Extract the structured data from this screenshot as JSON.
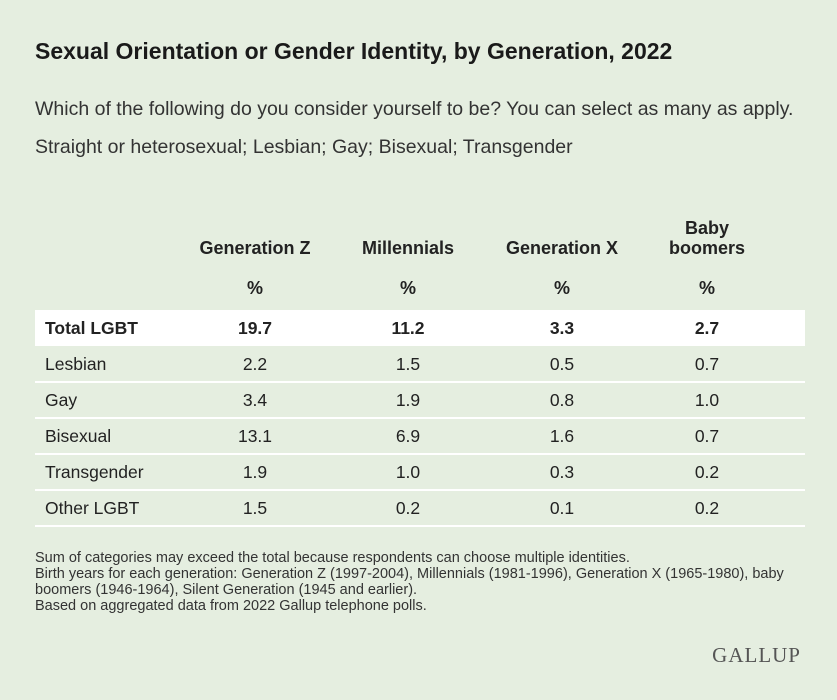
{
  "title": "Sexual Orientation or Gender Identity, by Generation, 2022",
  "subtitle": "Which of the following do you consider yourself to be? You can select as many as apply. Straight or heterosexual; Lesbian; Gay; Bisexual; Transgender",
  "table": {
    "columns": [
      "Generation Z",
      "Millennials",
      "Generation X",
      "Baby boomers"
    ],
    "units": [
      "%",
      "%",
      "%",
      "%"
    ],
    "rows": [
      [
        "Total LGBT",
        "19.7",
        "11.2",
        "3.3",
        "2.7"
      ],
      [
        "Lesbian",
        "2.2",
        "1.5",
        "0.5",
        "0.7"
      ],
      [
        "Gay",
        "3.4",
        "1.9",
        "0.8",
        "1.0"
      ],
      [
        "Bisexual",
        "13.1",
        "6.9",
        "1.6",
        "0.7"
      ],
      [
        "Transgender",
        "1.9",
        "1.0",
        "0.3",
        "0.2"
      ],
      [
        "Other LGBT",
        "1.5",
        "0.2",
        "0.1",
        "0.2"
      ]
    ]
  },
  "notes": [
    "Sum of categories may exceed the total because respondents can choose multiple identities.",
    "Birth years for each generation: Generation Z (1997-2004), Millennials (1981-1996), Generation X (1965-1980), baby boomers (1946-1964), Silent Generation (1945 and earlier).",
    "Based on aggregated data from 2022 Gallup telephone polls."
  ],
  "brand": "GALLUP"
}
